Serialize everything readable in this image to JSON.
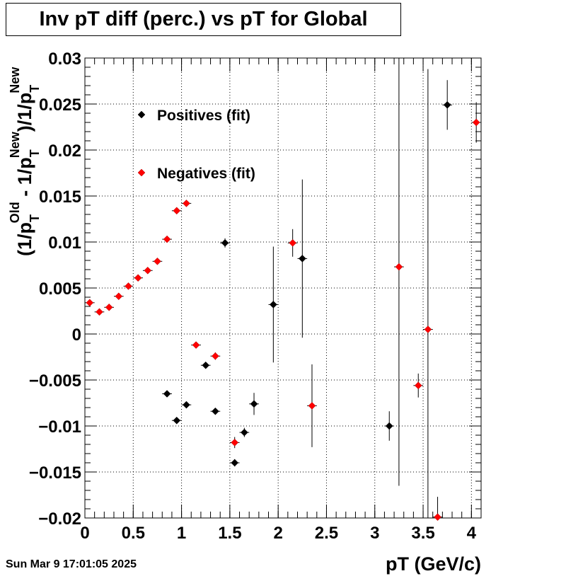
{
  "title": "Inv pT diff (perc.) vs pT for Global",
  "timestamp": "Sun Mar  9 17:01:05 2025",
  "chart_data": {
    "type": "scatter",
    "title": "Inv pT diff (perc.) vs pT for Global",
    "xlabel": "pT (GeV/c)",
    "ylabel": {
      "parts": [
        {
          "t": "(1/p",
          "k": "n"
        },
        {
          "t": "T",
          "k": "sub"
        },
        {
          "t": "Old",
          "k": "sup"
        },
        {
          "t": " - 1/p",
          "k": "n"
        },
        {
          "t": "T",
          "k": "sub"
        },
        {
          "t": "New",
          "k": "sup"
        },
        {
          "t": ")/1/p",
          "k": "n"
        },
        {
          "t": "T",
          "k": "sub"
        },
        {
          "t": "New",
          "k": "sup"
        }
      ]
    },
    "xlim": [
      0,
      4.1
    ],
    "ylim": [
      -0.02,
      0.03
    ],
    "x_ticks": [
      0,
      0.5,
      1,
      1.5,
      2,
      2.5,
      3,
      3.5,
      4
    ],
    "x_tick_labels": [
      "0",
      "0.5",
      "1",
      "1.5",
      "2",
      "2.5",
      "3",
      "3.5",
      "4"
    ],
    "y_ticks": [
      -0.02,
      -0.015,
      -0.01,
      -0.005,
      0,
      0.005,
      0.01,
      0.015,
      0.02,
      0.025,
      0.03
    ],
    "y_tick_labels": [
      "−0.02",
      "−0.015",
      "−0.01",
      "−0.005",
      "0",
      "0.005",
      "0.01",
      "0.015",
      "0.02",
      "0.025",
      "0.03"
    ],
    "grid": true,
    "legend_position": "top-left",
    "series": [
      {
        "name": "Positives (fit)",
        "color": "#000000",
        "points": [
          {
            "x": 0.85,
            "y": -0.0065,
            "yerr": 0.0002
          },
          {
            "x": 0.95,
            "y": -0.0094,
            "yerr": 0.0002
          },
          {
            "x": 1.05,
            "y": -0.0077,
            "yerr": 0.0002
          },
          {
            "x": 1.25,
            "y": -0.0034,
            "yerr": 0.0002
          },
          {
            "x": 1.35,
            "y": -0.0084,
            "yerr": 0.0002
          },
          {
            "x": 1.45,
            "y": 0.0099,
            "yerr": 0.0005
          },
          {
            "x": 1.55,
            "y": -0.014,
            "yerr": 0.0004
          },
          {
            "x": 1.65,
            "y": -0.0107,
            "yerr": 0.0005
          },
          {
            "x": 1.75,
            "y": -0.0076,
            "yerr": 0.0012
          },
          {
            "x": 1.95,
            "y": 0.0032,
            "yerr": 0.0063
          },
          {
            "x": 2.25,
            "y": 0.0082,
            "yerr": 0.0086
          },
          {
            "x": 3.15,
            "y": -0.01,
            "yerr": 0.0016
          },
          {
            "x": 3.75,
            "y": 0.0249,
            "yerr": 0.0027
          }
        ]
      },
      {
        "name": "Negatives (fit)",
        "color": "#ff0000",
        "points": [
          {
            "x": 0.05,
            "y": 0.0034,
            "yerr": 0.0002
          },
          {
            "x": 0.15,
            "y": 0.0024,
            "yerr": 0.0002
          },
          {
            "x": 0.25,
            "y": 0.0029,
            "yerr": 0.0002
          },
          {
            "x": 0.35,
            "y": 0.0041,
            "yerr": 0.0002
          },
          {
            "x": 0.45,
            "y": 0.0052,
            "yerr": 0.0002
          },
          {
            "x": 0.55,
            "y": 0.0061,
            "yerr": 0.0002
          },
          {
            "x": 0.65,
            "y": 0.0069,
            "yerr": 0.0002
          },
          {
            "x": 0.75,
            "y": 0.0079,
            "yerr": 0.0002
          },
          {
            "x": 0.85,
            "y": 0.0103,
            "yerr": 0.0002
          },
          {
            "x": 0.95,
            "y": 0.0134,
            "yerr": 0.0002
          },
          {
            "x": 1.05,
            "y": 0.0142,
            "yerr": 0.0002
          },
          {
            "x": 1.15,
            "y": -0.0012,
            "yerr": 0.0002
          },
          {
            "x": 1.35,
            "y": -0.0024,
            "yerr": 0.0004
          },
          {
            "x": 1.55,
            "y": -0.0118,
            "yerr": 0.0006
          },
          {
            "x": 2.15,
            "y": 0.0099,
            "yerr": 0.0015
          },
          {
            "x": 2.35,
            "y": -0.0078,
            "yerr": 0.0045
          },
          {
            "x": 3.25,
            "y": 0.0073,
            "yerr": 0.0238
          },
          {
            "x": 3.45,
            "y": -0.0056,
            "yerr": 0.0013
          },
          {
            "x": 3.55,
            "y": 0.0005,
            "yerr": 0.0283
          },
          {
            "x": 3.65,
            "y": -0.0199,
            "yerr": 0.0022
          },
          {
            "x": 4.05,
            "y": 0.023,
            "yerr": 0.0022
          }
        ]
      }
    ]
  }
}
